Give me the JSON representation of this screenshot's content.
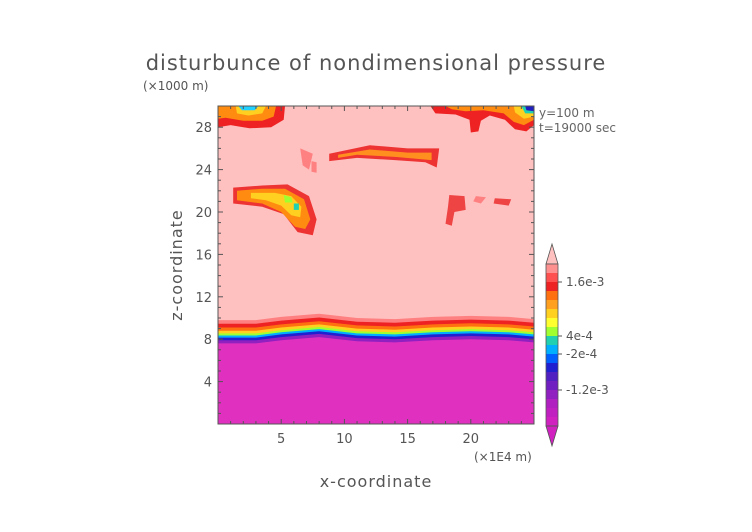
{
  "chart_data": {
    "type": "heatmap",
    "title": "disturbunce of nondimensional pressure",
    "xlabel": "x-coordinate",
    "ylabel": "z-coordinate",
    "x_unit": "(×1E4 m)",
    "y_unit": "(×1000 m)",
    "annotations": [
      "y=100 m",
      "t=19000 sec"
    ],
    "xlim": [
      0,
      25
    ],
    "ylim": [
      0,
      30
    ],
    "x_ticks": [
      "5",
      "10",
      "15",
      "20"
    ],
    "x_tick_values": [
      5,
      10,
      15,
      20
    ],
    "y_ticks": [
      "4",
      "8",
      "12",
      "16",
      "20",
      "24",
      "28"
    ],
    "y_tick_values": [
      4,
      8,
      12,
      16,
      20,
      24,
      28
    ],
    "background_level_color": "#ffc0c0",
    "colorbar": {
      "labels": [
        "1.6e-3",
        "4e-4",
        "-2e-4",
        "-1.2e-3"
      ],
      "colors_top_to_bottom": [
        "#ff9090",
        "#ff5050",
        "#ee2222",
        "#ff7010",
        "#ffa020",
        "#ffd020",
        "#ffff30",
        "#a0ff30",
        "#20d0b0",
        "#00b0ff",
        "#0060ff",
        "#2020d0",
        "#5020c0",
        "#7020c0",
        "#9020c0",
        "#b020c0",
        "#c020c0",
        "#d020c0"
      ],
      "over_color": "#ffc0c0",
      "under_color": "#d020c0"
    },
    "base_layer": {
      "color": "#e030c0",
      "top_profile": [
        [
          0,
          7.6
        ],
        [
          3,
          7.6
        ],
        [
          5,
          7.9
        ],
        [
          8,
          8.2
        ],
        [
          11,
          7.8
        ],
        [
          14,
          7.7
        ],
        [
          17,
          7.9
        ],
        [
          20,
          8.0
        ],
        [
          23,
          7.9
        ],
        [
          25,
          7.7
        ]
      ]
    },
    "transition_bands": [
      {
        "color": "#9020c0",
        "offset": 0.3
      },
      {
        "color": "#2020d0",
        "offset": 0.55
      },
      {
        "color": "#00b0ff",
        "offset": 0.75
      },
      {
        "color": "#a0ff30",
        "offset": 0.95
      },
      {
        "color": "#ffd020",
        "offset": 1.2
      },
      {
        "color": "#ff7010",
        "offset": 1.5
      },
      {
        "color": "#ee2222",
        "offset": 1.85
      },
      {
        "color": "#ff8080",
        "offset": 2.2
      }
    ],
    "features": [
      {
        "color": "#ee3333",
        "points": [
          [
            1.2,
            22.3
          ],
          [
            3.5,
            22.5
          ],
          [
            5.5,
            22.6
          ],
          [
            7.2,
            21.5
          ],
          [
            7.8,
            19.3
          ],
          [
            7.5,
            17.8
          ],
          [
            6.3,
            18.1
          ],
          [
            5.2,
            19.8
          ],
          [
            3.5,
            20.5
          ],
          [
            1.2,
            20.8
          ]
        ]
      },
      {
        "color": "#ff8c10",
        "points": [
          [
            1.5,
            22.0
          ],
          [
            3.5,
            22.2
          ],
          [
            5.3,
            22.2
          ],
          [
            6.8,
            21.2
          ],
          [
            7.3,
            19.3
          ],
          [
            6.9,
            18.4
          ],
          [
            6.1,
            18.6
          ],
          [
            5.0,
            20.0
          ],
          [
            3.5,
            20.8
          ],
          [
            1.5,
            21.1
          ]
        ]
      },
      {
        "color": "#ffd020",
        "points": [
          [
            2.6,
            21.8
          ],
          [
            4.5,
            21.8
          ],
          [
            5.8,
            21.5
          ],
          [
            6.6,
            20.5
          ],
          [
            6.5,
            19.5
          ],
          [
            5.8,
            19.7
          ],
          [
            5.0,
            20.6
          ],
          [
            3.8,
            21.1
          ],
          [
            2.6,
            21.3
          ]
        ]
      },
      {
        "color": "#a0ff30",
        "points": [
          [
            5.2,
            21.6
          ],
          [
            5.8,
            21.4
          ],
          [
            5.9,
            20.9
          ],
          [
            5.3,
            20.9
          ]
        ]
      },
      {
        "color": "#20d0b0",
        "points": [
          [
            6.0,
            20.8
          ],
          [
            6.4,
            20.8
          ],
          [
            6.4,
            20.2
          ],
          [
            6.0,
            20.2
          ]
        ]
      },
      {
        "color": "#ee3333",
        "points": [
          [
            8.8,
            25.5
          ],
          [
            12.0,
            26.3
          ],
          [
            15.0,
            26.0
          ],
          [
            17.5,
            26.0
          ],
          [
            17.3,
            24.2
          ],
          [
            16.4,
            24.7
          ],
          [
            14.0,
            24.9
          ],
          [
            11.0,
            25.1
          ],
          [
            8.8,
            24.8
          ]
        ]
      },
      {
        "color": "#ff9020",
        "points": [
          [
            9.5,
            25.4
          ],
          [
            12.0,
            25.9
          ],
          [
            15.0,
            25.6
          ],
          [
            16.9,
            25.6
          ],
          [
            16.9,
            24.9
          ],
          [
            14.0,
            25.2
          ],
          [
            11.0,
            25.4
          ],
          [
            9.5,
            25.1
          ]
        ]
      },
      {
        "color": "#ee4444",
        "points": [
          [
            18.3,
            21.6
          ],
          [
            19.5,
            21.5
          ],
          [
            19.6,
            20.2
          ],
          [
            18.7,
            20.0
          ],
          [
            18.5,
            18.7
          ],
          [
            18.0,
            18.9
          ],
          [
            18.2,
            20.5
          ]
        ]
      },
      {
        "color": "#ee4444",
        "points": [
          [
            21.9,
            21.3
          ],
          [
            23.2,
            21.2
          ],
          [
            23.0,
            20.6
          ],
          [
            21.8,
            20.8
          ]
        ]
      },
      {
        "color": "#ff8080",
        "points": [
          [
            6.5,
            26.0
          ],
          [
            7.5,
            25.5
          ],
          [
            7.2,
            24.0
          ],
          [
            6.7,
            24.4
          ]
        ]
      },
      {
        "color": "#ff8080",
        "points": [
          [
            7.4,
            24.8
          ],
          [
            7.8,
            24.7
          ],
          [
            7.8,
            23.7
          ],
          [
            7.4,
            23.8
          ]
        ]
      },
      {
        "color": "#ff8080",
        "points": [
          [
            20.4,
            21.5
          ],
          [
            21.2,
            21.4
          ],
          [
            20.8,
            20.8
          ],
          [
            20.2,
            21.0
          ]
        ]
      },
      {
        "color": "#ee2222",
        "points": [
          [
            0,
            30
          ],
          [
            5.3,
            30
          ],
          [
            5.2,
            28.7
          ],
          [
            4.2,
            28.0
          ],
          [
            2.5,
            27.9
          ],
          [
            1.0,
            28.2
          ],
          [
            0,
            28.0
          ]
        ]
      },
      {
        "color": "#ff8c10",
        "points": [
          [
            0,
            30
          ],
          [
            4.6,
            30
          ],
          [
            4.4,
            29.0
          ],
          [
            3.5,
            28.6
          ],
          [
            2.0,
            28.6
          ],
          [
            0.6,
            28.9
          ],
          [
            0,
            28.8
          ]
        ]
      },
      {
        "color": "#ffd020",
        "points": [
          [
            1.4,
            30
          ],
          [
            3.8,
            30
          ],
          [
            3.5,
            29.3
          ],
          [
            2.4,
            29.1
          ],
          [
            1.5,
            29.3
          ]
        ]
      },
      {
        "color": "#20d0ff",
        "points": [
          [
            1.6,
            30
          ],
          [
            3.2,
            30
          ],
          [
            2.9,
            29.6
          ],
          [
            1.9,
            29.6
          ]
        ]
      },
      {
        "color": "#ee2222",
        "points": [
          [
            16.8,
            30
          ],
          [
            25,
            30
          ],
          [
            25,
            28.2
          ],
          [
            24.4,
            27.6
          ],
          [
            23.5,
            27.8
          ],
          [
            22.7,
            28.7
          ],
          [
            21.5,
            29.1
          ],
          [
            20.8,
            28.6
          ],
          [
            20.6,
            27.6
          ],
          [
            20.0,
            27.5
          ],
          [
            19.9,
            28.7
          ],
          [
            18.8,
            29.2
          ],
          [
            17.2,
            29.3
          ]
        ]
      },
      {
        "color": "#ff8c10",
        "points": [
          [
            18.0,
            30
          ],
          [
            25,
            30
          ],
          [
            25,
            28.7
          ],
          [
            24.2,
            28.2
          ],
          [
            23.4,
            28.5
          ],
          [
            22.6,
            29.3
          ],
          [
            21.0,
            29.6
          ],
          [
            19.6,
            29.5
          ],
          [
            18.5,
            29.7
          ]
        ]
      },
      {
        "color": "#ffd020",
        "points": [
          [
            23.4,
            30
          ],
          [
            25,
            30
          ],
          [
            25,
            29.0
          ],
          [
            24.2,
            28.8
          ],
          [
            23.5,
            29.4
          ]
        ]
      },
      {
        "color": "#20d0b0",
        "points": [
          [
            24.0,
            30
          ],
          [
            25,
            30
          ],
          [
            25,
            29.3
          ],
          [
            24.3,
            29.3
          ]
        ]
      },
      {
        "color": "#2020c0",
        "points": [
          [
            24.3,
            30
          ],
          [
            25,
            30
          ],
          [
            25,
            29.5
          ],
          [
            24.4,
            29.6
          ]
        ]
      }
    ]
  }
}
